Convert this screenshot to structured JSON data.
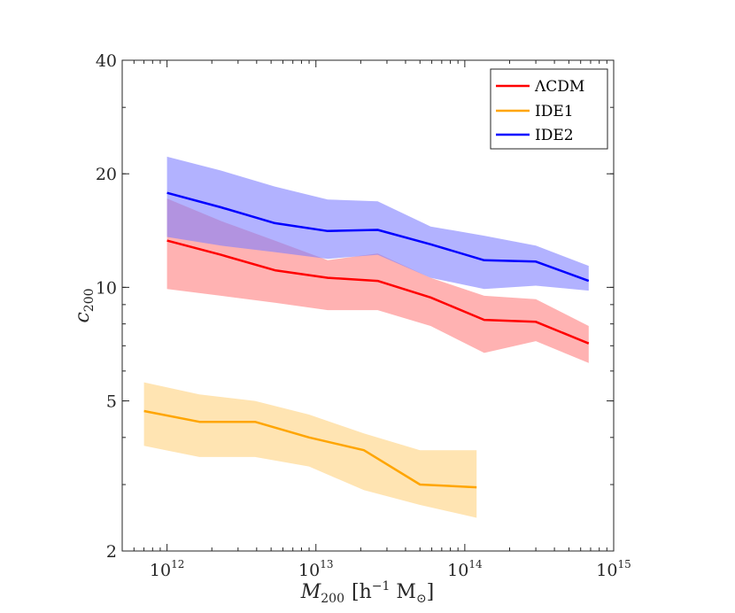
{
  "chart_data": {
    "type": "line",
    "xlabel_main": "M",
    "xlabel_sub": "200",
    "xlabel_unit": "[h",
    "xlabel_unit_sup": "−1",
    "xlabel_unit_rest": " M",
    "xlabel_unit_sub": "⊙",
    "xlabel_unit_close": "]",
    "ylabel_main": "c",
    "ylabel_sub": "200",
    "x_scale": "log",
    "y_scale": "log",
    "xlim": [
      500000000000.0,
      1000000000000000.0
    ],
    "ylim": [
      2,
      40
    ],
    "x_ticks": [
      {
        "value": 1000000000000.0,
        "base": "10",
        "exp": "12"
      },
      {
        "value": 10000000000000.0,
        "base": "10",
        "exp": "13"
      },
      {
        "value": 100000000000000.0,
        "base": "10",
        "exp": "14"
      },
      {
        "value": 1000000000000000.0,
        "base": "10",
        "exp": "15"
      }
    ],
    "y_ticks": [
      {
        "value": 2,
        "label": "2"
      },
      {
        "value": 5,
        "label": "5"
      },
      {
        "value": 10,
        "label": "10"
      },
      {
        "value": 20,
        "label": "20"
      },
      {
        "value": 40,
        "label": "40"
      }
    ],
    "legend_position": "top-right",
    "grid": false,
    "series": [
      {
        "name": "ΛCDM",
        "color": "#ff0000",
        "band_color": "#ff7f7f",
        "x": [
          1000000000000.0,
          2300000000000.0,
          5300000000000.0,
          12000000000000.0,
          26000000000000.0,
          59000000000000.0,
          135000000000000.0,
          300000000000000.0,
          680000000000000.0
        ],
        "y": [
          13.3,
          12.2,
          11.1,
          10.6,
          10.4,
          9.4,
          8.2,
          8.1,
          7.1
        ],
        "y_low": [
          9.9,
          9.5,
          9.1,
          8.7,
          8.7,
          7.9,
          6.7,
          7.2,
          6.3
        ],
        "y_high": [
          17.2,
          15.0,
          13.3,
          11.8,
          12.3,
          10.6,
          9.5,
          9.3,
          7.9
        ]
      },
      {
        "name": "IDE1",
        "color": "#ffa500",
        "band_color": "#ffd27f",
        "x": [
          700000000000.0,
          1650000000000.0,
          3900000000000.0,
          9000000000000.0,
          21000000000000.0,
          50000000000000.0,
          120000000000000.0
        ],
        "y": [
          4.7,
          4.4,
          4.4,
          4.0,
          3.7,
          3.0,
          2.95
        ],
        "y_low": [
          3.8,
          3.55,
          3.55,
          3.35,
          2.9,
          2.65,
          2.45
        ],
        "y_high": [
          5.6,
          5.2,
          5.0,
          4.6,
          4.1,
          3.7,
          3.7
        ]
      },
      {
        "name": "IDE2",
        "color": "#0000ff",
        "band_color": "#7f7fff",
        "x": [
          1000000000000.0,
          2300000000000.0,
          5300000000000.0,
          12000000000000.0,
          26000000000000.0,
          59000000000000.0,
          135000000000000.0,
          300000000000000.0,
          680000000000000.0
        ],
        "y": [
          17.8,
          16.3,
          14.8,
          14.1,
          14.2,
          13.0,
          11.8,
          11.7,
          10.4
        ],
        "y_low": [
          13.6,
          12.9,
          12.4,
          11.9,
          12.2,
          10.6,
          9.9,
          10.1,
          9.8
        ],
        "y_high": [
          22.2,
          20.4,
          18.5,
          17.1,
          16.9,
          14.5,
          13.7,
          12.9,
          11.4
        ]
      }
    ]
  }
}
